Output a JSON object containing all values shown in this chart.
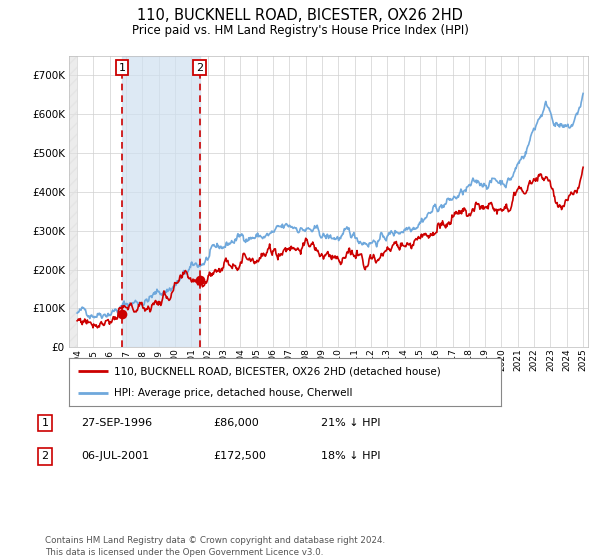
{
  "title": "110, BUCKNELL ROAD, BICESTER, OX26 2HD",
  "subtitle": "Price paid vs. HM Land Registry's House Price Index (HPI)",
  "legend_line1": "110, BUCKNELL ROAD, BICESTER, OX26 2HD (detached house)",
  "legend_line2": "HPI: Average price, detached house, Cherwell",
  "footnote": "Contains HM Land Registry data © Crown copyright and database right 2024.\nThis data is licensed under the Open Government Licence v3.0.",
  "sale1_date": "27-SEP-1996",
  "sale1_price": 86000,
  "sale1_hpi_pct": "21% ↓ HPI",
  "sale2_date": "06-JUL-2001",
  "sale2_price": 172500,
  "sale2_hpi_pct": "18% ↓ HPI",
  "sale1_year": 1996.75,
  "sale2_year": 2001.5,
  "hpi_color": "#6fa8dc",
  "price_color": "#cc0000",
  "sale_dot_color": "#cc0000",
  "dashed_line_color": "#cc0000",
  "shade_color": "#cfe0f0",
  "ylim": [
    0,
    750000
  ],
  "yticks": [
    0,
    100000,
    200000,
    300000,
    400000,
    500000,
    600000,
    700000
  ],
  "xlim_start": 1993.5,
  "xlim_end": 2025.3,
  "xtick_years": [
    1994,
    1995,
    1996,
    1997,
    1998,
    1999,
    2000,
    2001,
    2002,
    2003,
    2004,
    2005,
    2006,
    2007,
    2008,
    2009,
    2010,
    2011,
    2012,
    2013,
    2014,
    2015,
    2016,
    2017,
    2018,
    2019,
    2020,
    2021,
    2022,
    2023,
    2024,
    2025
  ]
}
